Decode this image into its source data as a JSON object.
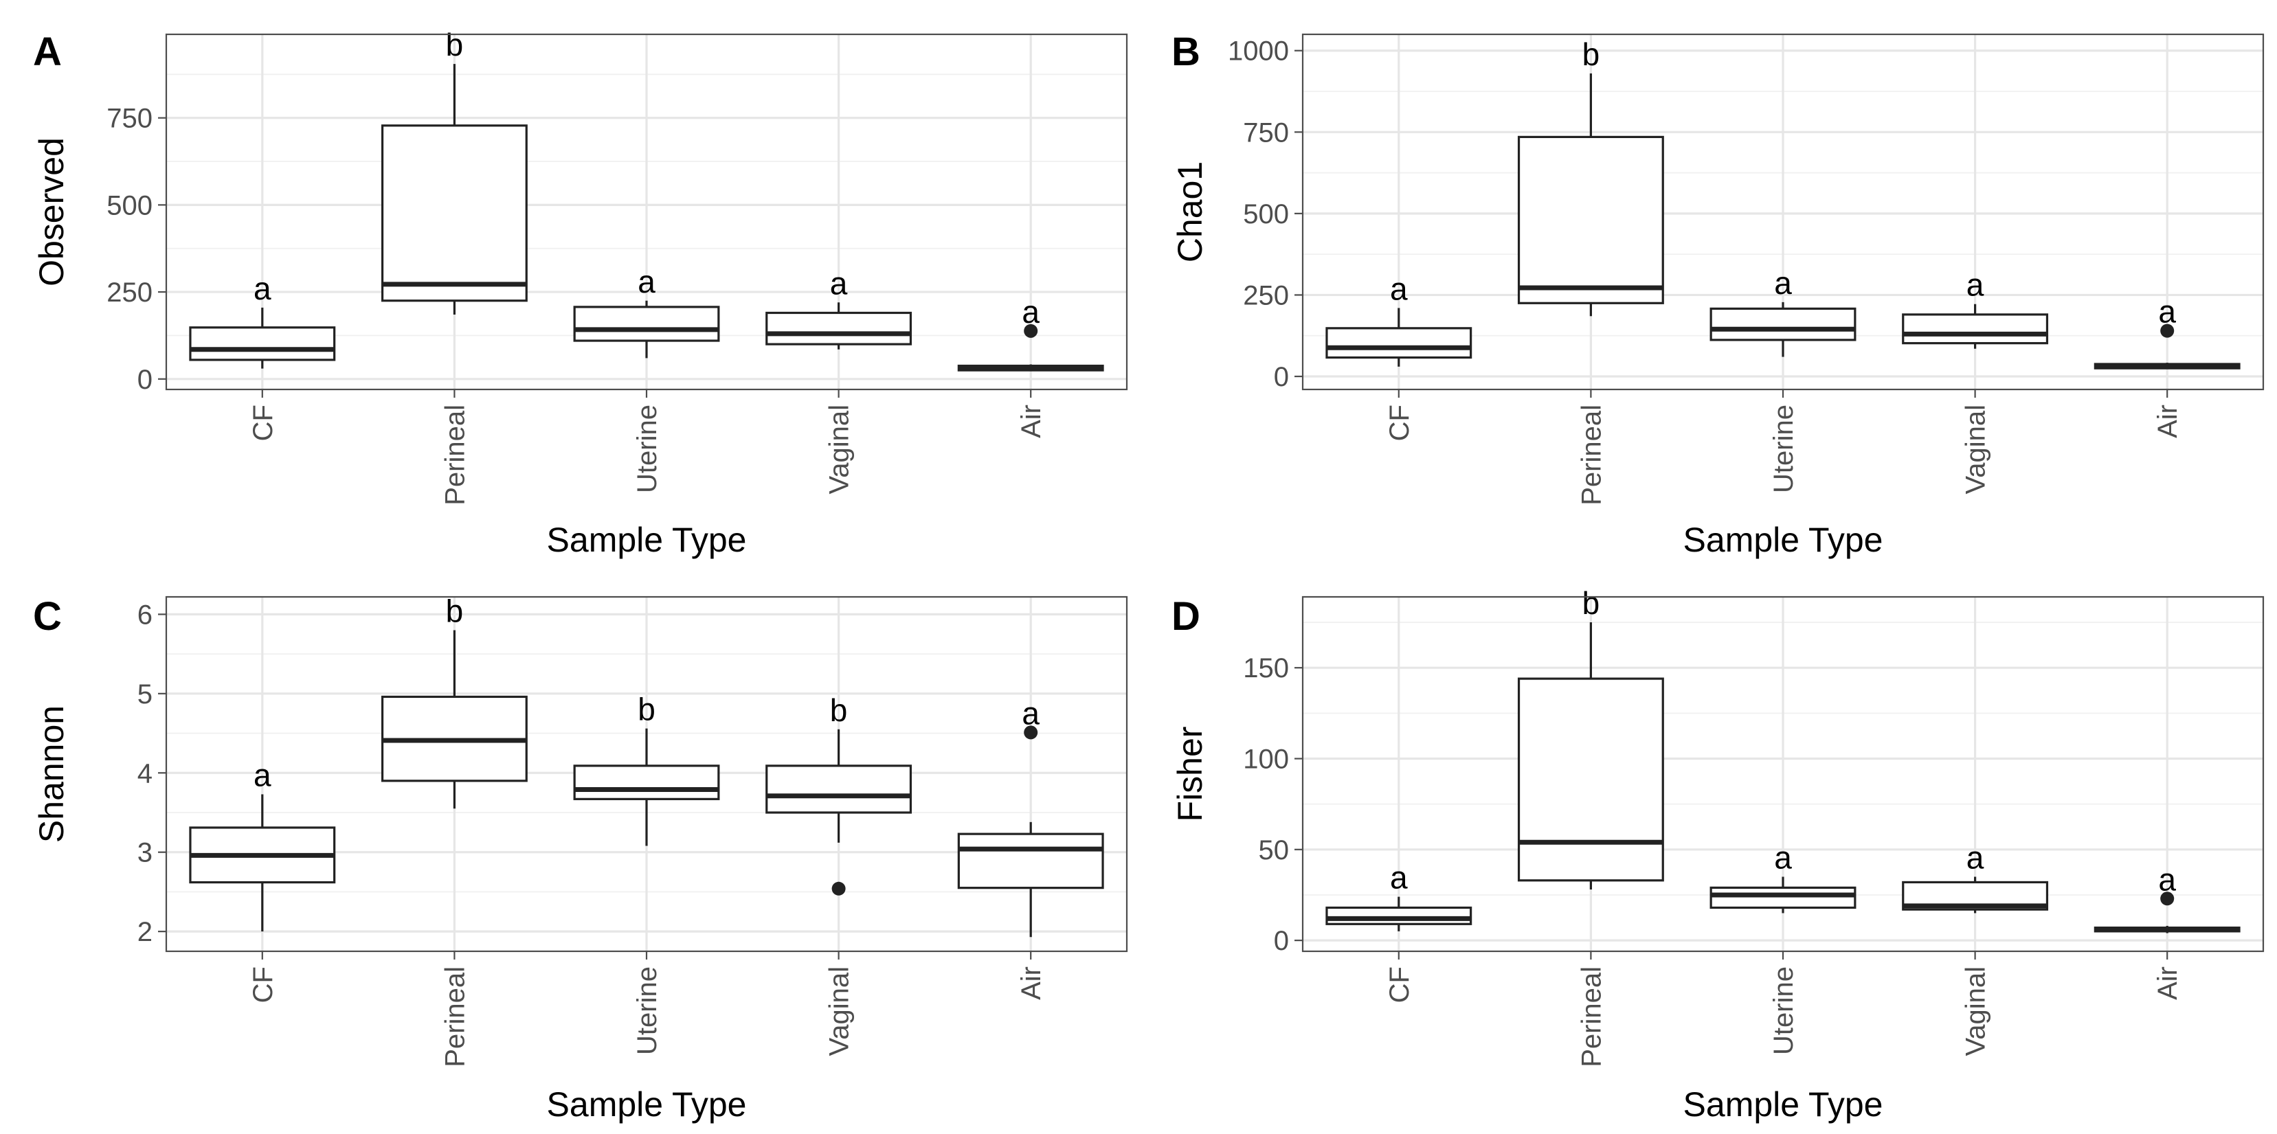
{
  "chart_data": [
    {
      "panel": "A",
      "type": "box",
      "xlabel": "Sample Type",
      "ylabel": "Observed",
      "ylim": [
        -30,
        990
      ],
      "yticks": [
        0,
        250,
        500,
        750
      ],
      "ytick_labels": [
        "0",
        "250",
        "500",
        "750"
      ],
      "categories": [
        "CF",
        "Perineal",
        "Uterine",
        "Vaginal",
        "Air"
      ],
      "boxes": [
        {
          "min": 30,
          "q1": 55,
          "median": 85,
          "q3": 148,
          "max": 205,
          "outliers": [],
          "group_letter": "a"
        },
        {
          "min": 185,
          "q1": 225,
          "median": 272,
          "q3": 728,
          "max": 905,
          "outliers": [],
          "group_letter": "b"
        },
        {
          "min": 60,
          "q1": 110,
          "median": 142,
          "q3": 207,
          "max": 225,
          "outliers": [],
          "group_letter": "a"
        },
        {
          "min": 85,
          "q1": 100,
          "median": 130,
          "q3": 190,
          "max": 220,
          "outliers": [],
          "group_letter": "a"
        },
        {
          "min": 25,
          "q1": 25,
          "median": 32,
          "q3": 38,
          "max": 42,
          "outliers": [
            138
          ],
          "group_letter": "a"
        }
      ]
    },
    {
      "panel": "B",
      "type": "box",
      "xlabel": "Sample Type",
      "ylabel": "Chao1",
      "ylim": [
        -40,
        1050
      ],
      "yticks": [
        0,
        250,
        500,
        750,
        1000
      ],
      "ytick_labels": [
        "0",
        "250",
        "500",
        "750",
        "1000"
      ],
      "categories": [
        "CF",
        "Perineal",
        "Uterine",
        "Vaginal",
        "Air"
      ],
      "boxes": [
        {
          "min": 30,
          "q1": 58,
          "median": 88,
          "q3": 148,
          "max": 210,
          "outliers": [],
          "group_letter": "a"
        },
        {
          "min": 185,
          "q1": 225,
          "median": 272,
          "q3": 735,
          "max": 930,
          "outliers": [],
          "group_letter": "b"
        },
        {
          "min": 60,
          "q1": 112,
          "median": 145,
          "q3": 208,
          "max": 228,
          "outliers": [],
          "group_letter": "a"
        },
        {
          "min": 85,
          "q1": 102,
          "median": 130,
          "q3": 190,
          "max": 222,
          "outliers": [],
          "group_letter": "a"
        },
        {
          "min": 25,
          "q1": 25,
          "median": 32,
          "q3": 38,
          "max": 42,
          "outliers": [
            140
          ],
          "group_letter": "a"
        }
      ]
    },
    {
      "panel": "C",
      "type": "box",
      "xlabel": "Sample Type",
      "ylabel": "Shannon",
      "ylim": [
        1.75,
        6.22
      ],
      "yticks": [
        2,
        3,
        4,
        5,
        6
      ],
      "ytick_labels": [
        "2",
        "3",
        "4",
        "5",
        "6"
      ],
      "categories": [
        "CF",
        "Perineal",
        "Uterine",
        "Vaginal",
        "Air"
      ],
      "boxes": [
        {
          "min": 2.0,
          "q1": 2.62,
          "median": 2.96,
          "q3": 3.31,
          "max": 3.73,
          "outliers": [],
          "group_letter": "a"
        },
        {
          "min": 3.55,
          "q1": 3.9,
          "median": 4.41,
          "q3": 4.96,
          "max": 5.8,
          "outliers": [],
          "group_letter": "b"
        },
        {
          "min": 3.08,
          "q1": 3.67,
          "median": 3.79,
          "q3": 4.09,
          "max": 4.56,
          "outliers": [],
          "group_letter": "b"
        },
        {
          "min": 3.12,
          "q1": 3.5,
          "median": 3.71,
          "q3": 4.09,
          "max": 4.55,
          "outliers": [
            2.54
          ],
          "group_letter": "b"
        },
        {
          "min": 1.93,
          "q1": 2.55,
          "median": 3.04,
          "q3": 3.23,
          "max": 3.38,
          "outliers": [
            4.51
          ],
          "group_letter": "a"
        }
      ]
    },
    {
      "panel": "D",
      "type": "box",
      "xlabel": "Sample Type",
      "ylabel": "Fisher",
      "ylim": [
        -6,
        189
      ],
      "yticks": [
        0,
        50,
        100,
        150
      ],
      "ytick_labels": [
        "0",
        "50",
        "100",
        "150"
      ],
      "categories": [
        "CF",
        "Perineal",
        "Uterine",
        "Vaginal",
        "Air"
      ],
      "boxes": [
        {
          "min": 5,
          "q1": 9,
          "median": 12,
          "q3": 18,
          "max": 24,
          "outliers": [],
          "group_letter": "a"
        },
        {
          "min": 28,
          "q1": 33,
          "median": 54,
          "q3": 144,
          "max": 175,
          "outliers": [],
          "group_letter": "b"
        },
        {
          "min": 15,
          "q1": 18,
          "median": 25,
          "q3": 29,
          "max": 35,
          "outliers": [],
          "group_letter": "a"
        },
        {
          "min": 15,
          "q1": 17,
          "median": 19,
          "q3": 32,
          "max": 35,
          "outliers": [],
          "group_letter": "a"
        },
        {
          "min": 4,
          "q1": 5,
          "median": 6,
          "q3": 7,
          "max": 8,
          "outliers": [
            23
          ],
          "group_letter": "a"
        }
      ]
    }
  ]
}
